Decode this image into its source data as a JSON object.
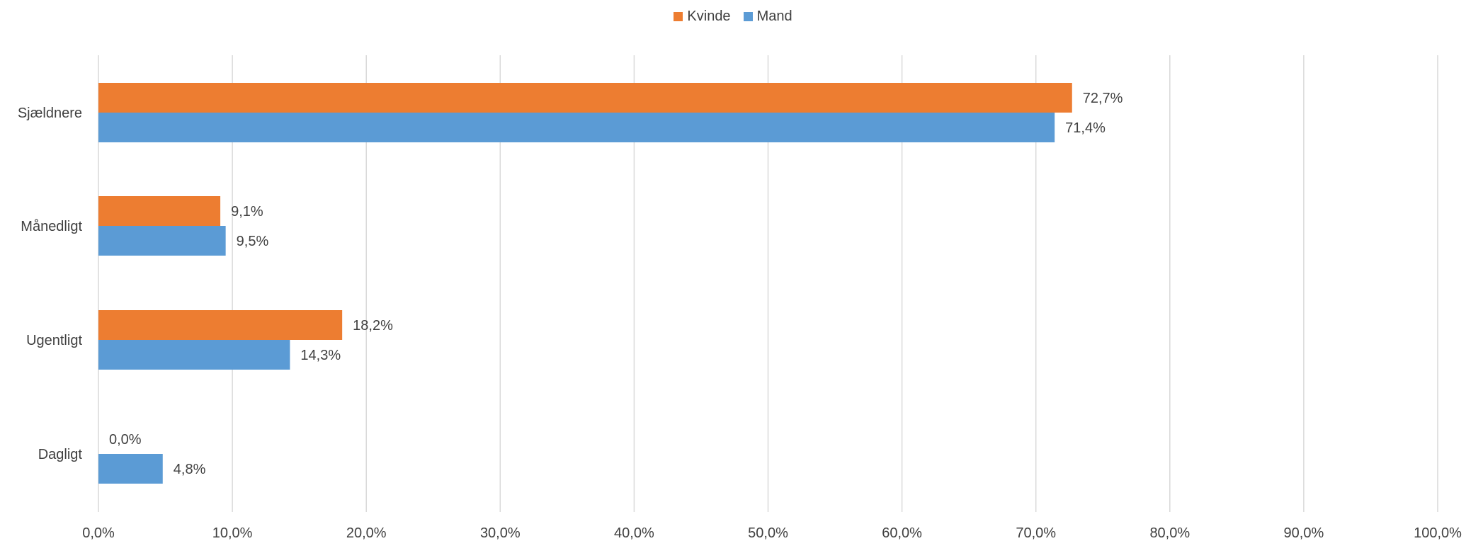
{
  "chart_data": {
    "type": "bar",
    "orientation": "horizontal",
    "categories": [
      "Sjældnere",
      "Månedligt",
      "Ugentligt",
      "Dagligt"
    ],
    "series": [
      {
        "name": "Kvinde",
        "color": "#ED7D31",
        "values": [
          72.7,
          9.1,
          18.2,
          0.0
        ],
        "labels": [
          "72,7%",
          "9,1%",
          "18,2%",
          "0,0%"
        ]
      },
      {
        "name": "Mand",
        "color": "#5B9BD5",
        "values": [
          71.4,
          9.5,
          14.3,
          4.8
        ],
        "labels": [
          "71,4%",
          "9,5%",
          "14,3%",
          "4,8%"
        ]
      }
    ],
    "xlim": [
      0,
      100
    ],
    "x_ticks": [
      0,
      10,
      20,
      30,
      40,
      50,
      60,
      70,
      80,
      90,
      100
    ],
    "x_tick_labels": [
      "0,0%",
      "10,0%",
      "20,0%",
      "30,0%",
      "40,0%",
      "50,0%",
      "60,0%",
      "70,0%",
      "80,0%",
      "90,0%",
      "100,0%"
    ],
    "grid": true,
    "legend_position": "top-center",
    "gridline_color": "#D9D9D9"
  }
}
